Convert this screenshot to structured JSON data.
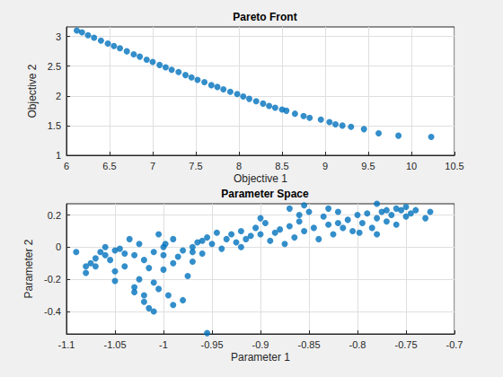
{
  "chart_data": [
    {
      "type": "scatter",
      "title": "Pareto Front",
      "xlabel": "Objective 1",
      "ylabel": "Objective 2",
      "color": "#0072bd",
      "grid": true,
      "xlim": [
        6,
        10.5
      ],
      "xticks": [
        6,
        6.5,
        7,
        7.5,
        8,
        8.5,
        9,
        9.5,
        10,
        10.5
      ],
      "ylim": [
        1,
        3.16
      ],
      "yticks": [
        1,
        1.5,
        2,
        2.5,
        3
      ],
      "x": [
        6.12,
        6.18,
        6.25,
        6.32,
        6.4,
        6.48,
        6.55,
        6.62,
        6.7,
        6.78,
        6.85,
        6.93,
        7.0,
        7.08,
        7.15,
        7.22,
        7.3,
        7.38,
        7.45,
        7.52,
        7.6,
        7.68,
        7.75,
        7.82,
        7.9,
        7.98,
        8.05,
        8.12,
        8.2,
        8.28,
        8.35,
        8.42,
        8.5,
        8.55,
        8.65,
        8.75,
        8.82,
        8.95,
        9.05,
        9.12,
        9.2,
        9.3,
        9.45,
        9.62,
        9.85,
        10.23
      ],
      "values": [
        3.1,
        3.07,
        3.02,
        2.98,
        2.93,
        2.88,
        2.84,
        2.8,
        2.75,
        2.7,
        2.66,
        2.61,
        2.57,
        2.52,
        2.48,
        2.44,
        2.4,
        2.35,
        2.31,
        2.27,
        2.23,
        2.18,
        2.15,
        2.11,
        2.07,
        2.03,
        1.99,
        1.95,
        1.91,
        1.87,
        1.83,
        1.8,
        1.77,
        1.75,
        1.7,
        1.66,
        1.63,
        1.6,
        1.56,
        1.52,
        1.5,
        1.48,
        1.44,
        1.37,
        1.33,
        1.31
      ]
    },
    {
      "type": "scatter",
      "title": "Parameter Space",
      "xlabel": "Parameter 1",
      "ylabel": "Parameter 2",
      "color": "#0072bd",
      "grid": true,
      "xlim": [
        -1.1,
        -0.7
      ],
      "xticks": [
        -1.1,
        -1.05,
        -1,
        -0.95,
        -0.9,
        -0.85,
        -0.8,
        -0.75,
        -0.7
      ],
      "ylim": [
        -0.54,
        0.27
      ],
      "yticks": [
        -0.4,
        -0.2,
        0,
        0.2
      ],
      "x": [
        -1.09,
        -1.08,
        -1.075,
        -1.07,
        -1.07,
        -1.065,
        -1.06,
        -1.06,
        -1.055,
        -1.05,
        -1.05,
        -1.05,
        -1.045,
        -1.04,
        -1.04,
        -1.035,
        -1.03,
        -1.03,
        -1.03,
        -1.025,
        -1.025,
        -1.02,
        -1.02,
        -1.02,
        -1.015,
        -1.015,
        -1.01,
        -1.01,
        -1.01,
        -1.005,
        -1.005,
        -1.0,
        -1.0,
        -1.0,
        -0.998,
        -0.995,
        -0.99,
        -0.99,
        -0.99,
        -0.985,
        -0.98,
        -0.98,
        -0.975,
        -0.97,
        -0.97,
        -0.965,
        -0.96,
        -0.955,
        -0.955,
        -0.95,
        -0.945,
        -0.94,
        -0.935,
        -0.93,
        -0.925,
        -0.92,
        -0.915,
        -0.91,
        -0.905,
        -0.9,
        -0.895,
        -0.89,
        -0.885,
        -0.88,
        -0.875,
        -0.87,
        -0.865,
        -0.86,
        -0.855,
        -0.85,
        -0.845,
        -0.84,
        -0.835,
        -0.83,
        -0.825,
        -0.82,
        -0.815,
        -0.81,
        -0.805,
        -0.8,
        -0.798,
        -0.795,
        -0.79,
        -0.785,
        -0.78,
        -0.78,
        -0.775,
        -0.77,
        -0.77,
        -0.765,
        -0.76,
        -0.76,
        -0.755,
        -0.75,
        -0.745,
        -0.74,
        -0.73,
        -0.725,
        -0.75,
        -1.08,
        -0.92,
        -0.96,
        -0.97,
        -0.87,
        -0.855,
        -0.78,
        -0.86,
        -0.9,
        -0.82,
        -0.83
      ],
      "values": [
        -0.03,
        -0.16,
        -0.1,
        -0.07,
        -0.12,
        -0.03,
        -0.05,
        0.0,
        -0.08,
        -0.02,
        -0.15,
        -0.21,
        -0.01,
        -0.04,
        -0.12,
        0.05,
        -0.05,
        -0.25,
        -0.28,
        -0.2,
        0.02,
        -0.3,
        -0.34,
        -0.08,
        -0.13,
        -0.38,
        -0.4,
        -0.03,
        -0.22,
        -0.26,
        0.08,
        -0.14,
        0.0,
        -0.05,
        0.02,
        -0.3,
        -0.36,
        -0.1,
        0.05,
        -0.06,
        -0.02,
        -0.33,
        -0.18,
        0.0,
        -0.09,
        0.03,
        -0.04,
        -0.535,
        0.06,
        0.02,
        0.09,
        -0.01,
        0.05,
        0.08,
        0.03,
        0.1,
        0.05,
        0.07,
        0.12,
        0.08,
        0.15,
        0.04,
        0.09,
        0.11,
        0.02,
        0.13,
        0.06,
        0.16,
        0.1,
        0.22,
        0.12,
        0.05,
        0.19,
        0.14,
        0.08,
        0.22,
        0.12,
        0.17,
        0.1,
        0.2,
        0.09,
        0.15,
        0.21,
        0.12,
        0.18,
        0.08,
        0.22,
        0.16,
        0.23,
        0.2,
        0.24,
        0.14,
        0.23,
        0.25,
        0.21,
        0.23,
        0.18,
        0.22,
        0.19,
        -0.12,
        0.0,
        0.04,
        -0.03,
        0.24,
        0.26,
        0.27,
        0.2,
        0.18,
        0.15,
        0.24
      ]
    }
  ]
}
